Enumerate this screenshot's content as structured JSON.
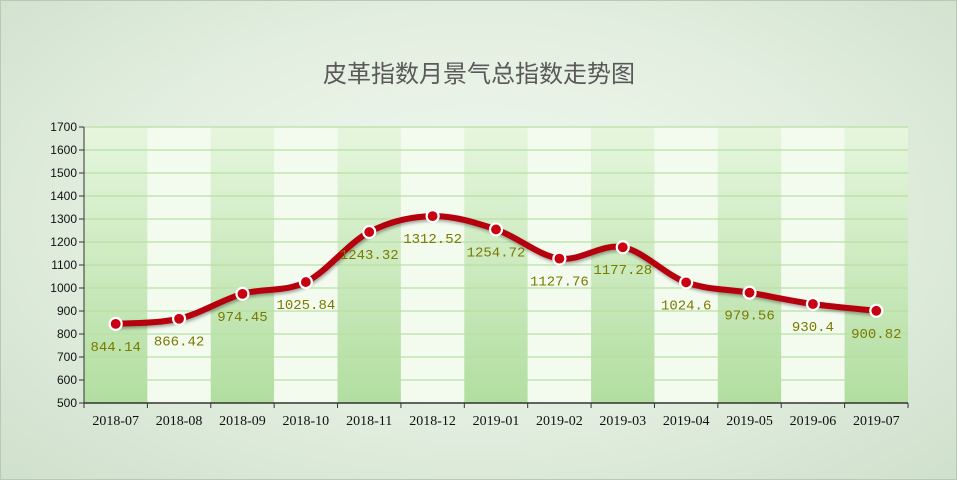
{
  "chart_data": {
    "type": "line",
    "title": "皮革指数月景气总指数走势图",
    "categories": [
      "2018-07",
      "2018-08",
      "2018-09",
      "2018-10",
      "2018-11",
      "2018-12",
      "2019-01",
      "2019-02",
      "2019-03",
      "2019-04",
      "2019-05",
      "2019-06",
      "2019-07"
    ],
    "series": [
      {
        "values": [
          844.14,
          866.42,
          974.45,
          1025.84,
          1243.32,
          1312.52,
          1254.72,
          1127.76,
          1177.28,
          1024.6,
          979.56,
          930.4,
          900.82
        ]
      }
    ],
    "value_labels": [
      "844.14",
      "866.42",
      "974.45",
      "1025.84",
      "1243.32",
      "1312.52",
      "1254.72",
      "1127.76",
      "1177.28",
      "1024.6",
      "979.56",
      "930.4",
      "900.82"
    ],
    "y_ticks": [
      "500",
      "600",
      "700",
      "800",
      "900",
      "1000",
      "1100",
      "1200",
      "1300",
      "1400",
      "1500",
      "1600",
      "1700"
    ],
    "ylim": [
      500,
      1700
    ],
    "xlabel": "",
    "ylabel": "",
    "grid": true,
    "legend": "none",
    "colors": {
      "line": "#b5000f",
      "marker_fill": "#c8000f",
      "marker_stroke": "#ffffff",
      "label": "#7a7a00",
      "gridline": "#b8e0a4",
      "band_light": "#f3fbef",
      "band_dark_top": "#e6f6de",
      "band_dark_bottom": "#b2dea0",
      "axis": "#333333"
    }
  }
}
